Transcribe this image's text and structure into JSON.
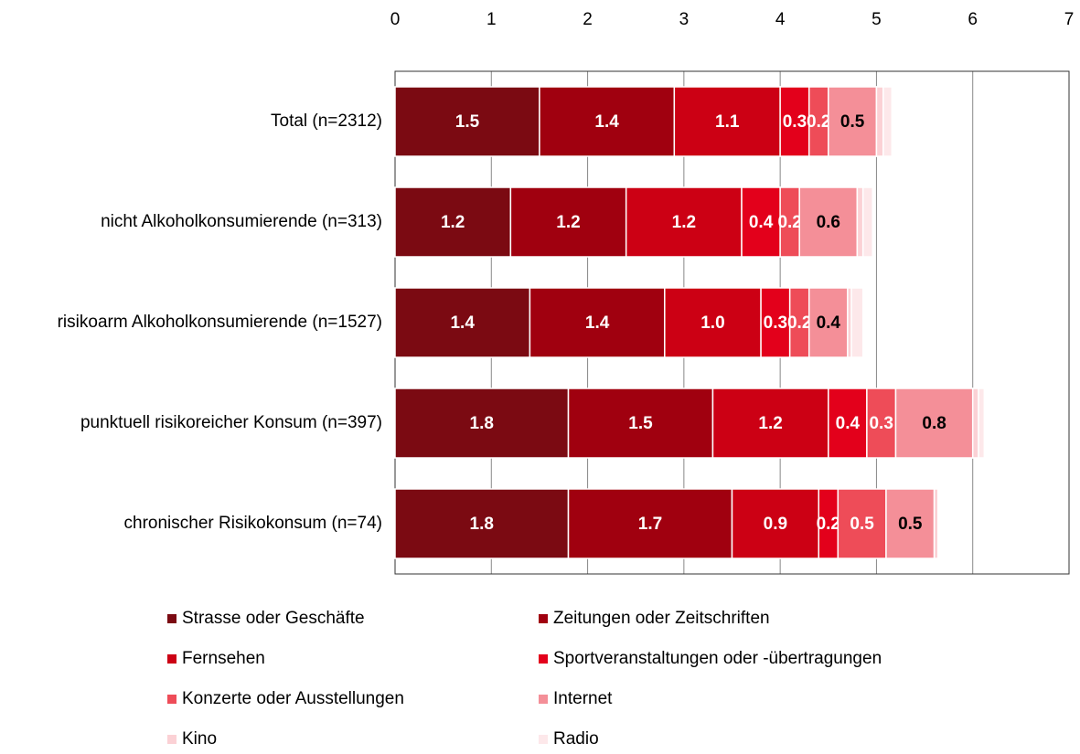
{
  "chart_data": {
    "type": "stacked_barh",
    "categories": [
      "Total (n=2312)",
      "nicht Alkoholkonsumierende (n=313)",
      "risikoarm Alkoholkonsumierende (n=1527)",
      "punktuell risikoreicher Konsum (n=397)",
      "chronischer Risikokonsum (n=74)"
    ],
    "xlim": [
      0,
      7
    ],
    "xticks": [
      0,
      1,
      2,
      3,
      4,
      5,
      6,
      7
    ],
    "grid": true,
    "legend": "bottom",
    "series": [
      {
        "name": "Strasse oder Geschäfte",
        "color": "#7b0a12",
        "values": [
          1.5,
          1.2,
          1.4,
          1.8,
          1.8
        ],
        "value_labels": [
          "1.5",
          "1.2",
          "1.4",
          "1.8",
          "1.8"
        ]
      },
      {
        "name": "Zeitungen oder Zeitschriften",
        "color": "#a0000f",
        "values": [
          1.4,
          1.2,
          1.4,
          1.5,
          1.7
        ],
        "value_labels": [
          "1.4",
          "1.2",
          "1.4",
          "1.5",
          "1.7"
        ]
      },
      {
        "name": "Fernsehen",
        "color": "#cc0014",
        "values": [
          1.1,
          1.2,
          1.0,
          1.2,
          0.9
        ],
        "value_labels": [
          "1.1",
          "1.2",
          "1.0",
          "1.2",
          "0.9"
        ]
      },
      {
        "name": "Sportveranstaltungen oder -übertragungen",
        "color": "#e3001b",
        "values": [
          0.3,
          0.4,
          0.3,
          0.4,
          0.2
        ],
        "value_labels": [
          "0.3",
          "0.4",
          "0.3",
          "0.4",
          "0.2"
        ]
      },
      {
        "name": "Konzerte  oder Ausstellungen",
        "color": "#ee4c58",
        "values": [
          0.2,
          0.2,
          0.2,
          0.3,
          0.5
        ],
        "value_labels": [
          "0.2",
          "0.2",
          "0.2",
          "0.3",
          "0.5"
        ]
      },
      {
        "name": "Internet",
        "color": "#f48f98",
        "values": [
          0.5,
          0.6,
          0.4,
          0.8,
          0.5
        ],
        "value_labels": [
          "0.5",
          "0.6",
          "0.4",
          "0.8",
          "0.5"
        ]
      },
      {
        "name": "Kino",
        "color": "#fbd1d5",
        "values": [
          0.07,
          0.06,
          0.04,
          0.06,
          0.04
        ]
      },
      {
        "name": "Radio",
        "color": "#fde8ea",
        "values": [
          0.09,
          0.1,
          0.12,
          0.06,
          0.01
        ]
      }
    ]
  }
}
